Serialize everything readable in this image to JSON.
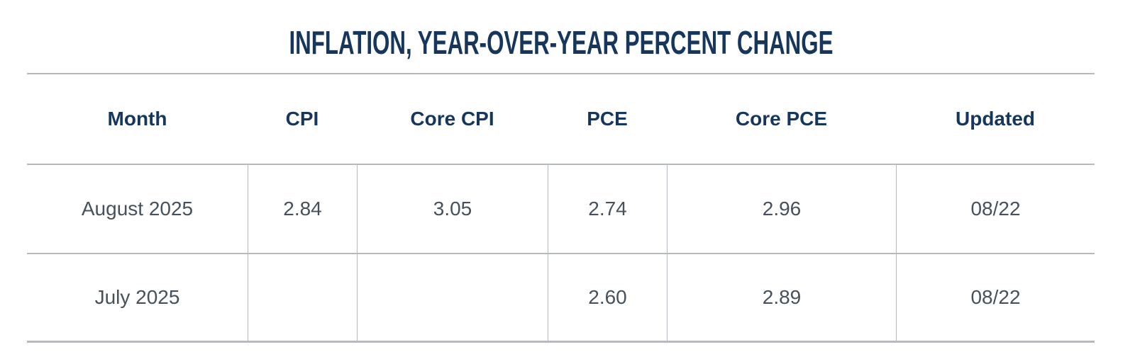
{
  "title": "INFLATION, YEAR-OVER-YEAR PERCENT CHANGE",
  "colors": {
    "navy": "#16365c",
    "slate": "#47515b",
    "line": "#b4bac0"
  },
  "chart_data": {
    "type": "table",
    "title": "INFLATION, YEAR-OVER-YEAR PERCENT CHANGE",
    "columns": [
      "Month",
      "CPI",
      "Core CPI",
      "PCE",
      "Core PCE",
      "Updated"
    ],
    "rows": [
      [
        "August 2025",
        "2.84",
        "3.05",
        "2.74",
        "2.96",
        "08/22"
      ],
      [
        "July 2025",
        "",
        "",
        "2.60",
        "2.89",
        "08/22"
      ]
    ],
    "layout": {
      "grid": "horizontal rules between all rows; vertical dividers only inside data rows",
      "value_units": "year-over-year percent change"
    }
  }
}
